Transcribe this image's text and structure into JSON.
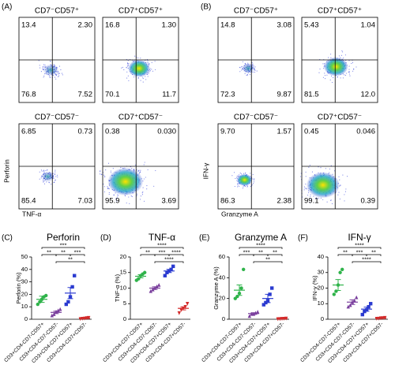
{
  "flow": [
    {
      "label": "(A)",
      "y_label": "Perforin",
      "x_label": "TNF-α",
      "plots": [
        {
          "title": "CD7⁻CD57⁺",
          "quadrants": [
            "13.4",
            "2.30",
            "76.8",
            "7.52"
          ]
        },
        {
          "title": "CD7⁺CD57⁺",
          "quadrants": [
            "16.8",
            "1.30",
            "70.1",
            "11.7"
          ]
        },
        {
          "title": "CD7⁻CD57⁻",
          "quadrants": [
            "6.85",
            "0.73",
            "85.4",
            "7.03"
          ]
        },
        {
          "title": "CD7⁺CD57⁻",
          "quadrants": [
            "0.38",
            "0.030",
            "95.9",
            "3.69"
          ]
        }
      ]
    },
    {
      "label": "(B)",
      "y_label": "IFN-γ",
      "x_label": "Granzyme A",
      "plots": [
        {
          "title": "CD7⁻CD57⁺",
          "quadrants": [
            "14.8",
            "3.08",
            "72.3",
            "9.87"
          ]
        },
        {
          "title": "CD7⁺CD57⁺",
          "quadrants": [
            "5.43",
            "1.04",
            "81.5",
            "12.0"
          ]
        },
        {
          "title": "CD7⁻CD57⁻",
          "quadrants": [
            "9.70",
            "1.57",
            "86.3",
            "2.38"
          ]
        },
        {
          "title": "CD7⁺CD57⁻",
          "quadrants": [
            "0.45",
            "0.046",
            "99.1",
            "0.39"
          ]
        }
      ]
    }
  ],
  "chart_data": [
    {
      "type": "dot",
      "label": "(C)",
      "title": "Perforin",
      "y_label": "Perforin (%)",
      "categories": [
        "CD3+CD4-CD7-CD57+",
        "CD3+CD4-CD7-CD57-",
        "CD3+CD4-CD7+CD57+",
        "CD3+CD4-CD7+CD57-"
      ],
      "colors": [
        "#2fb34a",
        "#7a3f9d",
        "#2b3bd0",
        "#d42a2a"
      ],
      "points": [
        [
          12,
          14,
          16,
          18,
          19
        ],
        [
          3,
          4,
          6,
          7,
          8
        ],
        [
          12,
          14,
          18,
          26,
          35
        ],
        [
          0.3,
          0.5,
          0.7,
          1,
          1.2
        ]
      ],
      "means": [
        16,
        5.5,
        21,
        0.7
      ],
      "errors": [
        2.5,
        1,
        4.5,
        0.2
      ],
      "ylim": [
        0,
        50
      ],
      "yticks": [
        0,
        10,
        20,
        30,
        40,
        50
      ],
      "significance": [
        {
          "groups": [
            0,
            3
          ],
          "label": "***"
        },
        {
          "groups": [
            0,
            1
          ],
          "label": "**"
        },
        {
          "groups": [
            1,
            2
          ],
          "label": "**"
        },
        {
          "groups": [
            2,
            3
          ],
          "label": "***"
        },
        {
          "groups": [
            1,
            3
          ],
          "label": "**"
        }
      ]
    },
    {
      "type": "dot",
      "label": "(D)",
      "title": "TNF-α",
      "y_label": "TNF-α (%)",
      "categories": [
        "CD3+CD4-CD7-CD57+",
        "CD3+CD4-CD7-CD57-",
        "CD3+CD4-CD7+CD57+",
        "CD3+CD4-CD7+CD57-"
      ],
      "colors": [
        "#2fb34a",
        "#7a3f9d",
        "#2b3bd0",
        "#d42a2a"
      ],
      "points": [
        [
          12.5,
          13,
          14,
          14.5,
          15
        ],
        [
          9,
          9.5,
          10,
          10.5,
          11
        ],
        [
          14,
          15,
          15.5,
          16,
          17
        ],
        [
          2,
          3,
          3.5,
          4,
          5
        ]
      ],
      "means": [
        13.8,
        10,
        15.5,
        3.5
      ],
      "errors": [
        0.5,
        0.4,
        0.5,
        0.5
      ],
      "ylim": [
        0,
        20
      ],
      "yticks": [
        0,
        5,
        10,
        15,
        20
      ],
      "significance": [
        {
          "groups": [
            0,
            3
          ],
          "label": "****"
        },
        {
          "groups": [
            0,
            1
          ],
          "label": "**"
        },
        {
          "groups": [
            1,
            2
          ],
          "label": "***"
        },
        {
          "groups": [
            2,
            3
          ],
          "label": "****"
        },
        {
          "groups": [
            1,
            3
          ],
          "label": "****"
        }
      ]
    },
    {
      "type": "dot",
      "label": "(E)",
      "title": "Granzyme A",
      "y_label": "Granzyme A (%)",
      "categories": [
        "CD3+CD4-CD7-CD57+",
        "CD3+CD4-CD7-CD57-",
        "CD3+CD4-CD7+CD57+",
        "CD3+CD4-CD7+CD57-"
      ],
      "colors": [
        "#2fb34a",
        "#7a3f9d",
        "#2b3bd0",
        "#d42a2a"
      ],
      "points": [
        [
          20,
          22,
          25,
          30,
          48
        ],
        [
          3,
          5,
          5,
          6,
          7
        ],
        [
          14,
          16,
          18,
          24,
          30
        ],
        [
          0.2,
          0.3,
          0.5,
          0.6,
          0.8
        ]
      ],
      "means": [
        28,
        5.5,
        20,
        0.5
      ],
      "errors": [
        5,
        0.8,
        4,
        0.1
      ],
      "ylim": [
        0,
        60
      ],
      "yticks": [
        0,
        20,
        40,
        60
      ],
      "significance": [
        {
          "groups": [
            0,
            3
          ],
          "label": "****"
        },
        {
          "groups": [
            0,
            1
          ],
          "label": "***"
        },
        {
          "groups": [
            1,
            2
          ],
          "label": "**"
        },
        {
          "groups": [
            2,
            3
          ],
          "label": "**"
        },
        {
          "groups": [
            1,
            3
          ],
          "label": "**"
        }
      ]
    },
    {
      "type": "dot",
      "label": "(F)",
      "title": "IFN-γ",
      "y_label": "IFN-γ (%)",
      "categories": [
        "CD3+CD4-CD7-CD57+",
        "CD3+CD4-CD7-CD57-",
        "CD3+CD4-CD7+CD57+",
        "CD3+CD4-CD7+CD57-"
      ],
      "colors": [
        "#2fb34a",
        "#7a3f9d",
        "#2b3bd0",
        "#d42a2a"
      ],
      "points": [
        [
          16,
          18,
          22,
          30,
          32
        ],
        [
          8,
          9,
          11,
          12,
          14
        ],
        [
          3,
          5,
          6,
          8,
          10
        ],
        [
          0.4,
          0.5,
          0.7,
          0.8,
          1
        ]
      ],
      "means": [
        22,
        11,
        6.5,
        0.7
      ],
      "errors": [
        3.5,
        1.5,
        1.3,
        0.1
      ],
      "ylim": [
        0,
        40
      ],
      "yticks": [
        0,
        10,
        20,
        30,
        40
      ],
      "significance": [
        {
          "groups": [
            0,
            3
          ],
          "label": "****"
        },
        {
          "groups": [
            0,
            1
          ],
          "label": "**"
        },
        {
          "groups": [
            1,
            2
          ],
          "label": "***"
        },
        {
          "groups": [
            2,
            3
          ],
          "label": "**"
        },
        {
          "groups": [
            1,
            3
          ],
          "label": "****"
        }
      ]
    }
  ]
}
